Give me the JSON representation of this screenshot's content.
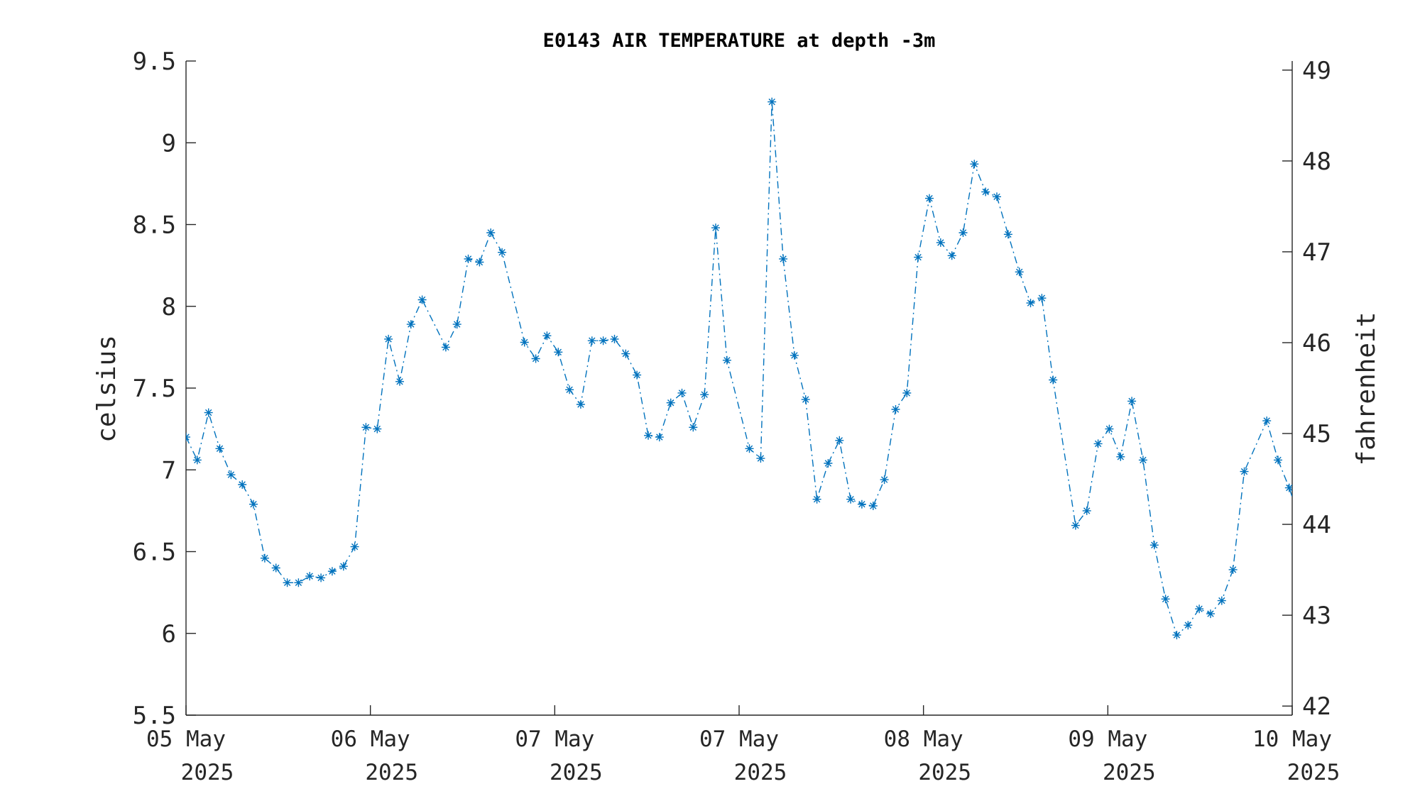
{
  "chart_data": {
    "type": "line",
    "title": "E0143 AIR TEMPERATURE at depth -3m",
    "ylabel": "celsius",
    "ylabel_right": "fahrenheit",
    "xlabel": "",
    "ylim": [
      5.5,
      9.5
    ],
    "ylim_right": [
      41.9,
      49.1
    ],
    "yticks": [
      5.5,
      6,
      6.5,
      7,
      7.5,
      8,
      8.5,
      9,
      9.5
    ],
    "ytick_labels": [
      "5.5",
      "6",
      "6.5",
      "7",
      "7.5",
      "8",
      "8.5",
      "9",
      "9.5"
    ],
    "yticks_right": [
      42,
      43,
      44,
      45,
      46,
      47,
      48,
      49
    ],
    "ytick_labels_right": [
      "42",
      "43",
      "44",
      "45",
      "46",
      "47",
      "48",
      "49"
    ],
    "xlim": [
      0,
      6
    ],
    "xticks": [
      {
        "pos": 0,
        "line1": "05 May",
        "line2": "2025"
      },
      {
        "pos": 1,
        "line1": "06 May",
        "line2": "2025"
      },
      {
        "pos": 2,
        "line1": "07 May",
        "line2": "2025"
      },
      {
        "pos": 3,
        "line1": "07 May",
        "line2": "2025"
      },
      {
        "pos": 4,
        "line1": "08 May",
        "line2": "2025"
      },
      {
        "pos": 5,
        "line1": "09 May",
        "line2": "2025"
      },
      {
        "pos": 6,
        "line1": "10 May",
        "line2": "2025"
      }
    ],
    "grid": false,
    "line_style": "dash-dot",
    "marker": "asterisk",
    "series": [
      {
        "color": "#0072bd",
        "x": [
          0.0,
          0.061,
          0.122,
          0.183,
          0.244,
          0.305,
          0.366,
          0.427,
          0.488,
          0.549,
          0.61,
          0.671,
          0.732,
          0.793,
          0.854,
          0.915,
          0.976,
          1.037,
          1.098,
          1.159,
          1.22,
          1.281,
          1.409,
          1.47,
          1.531,
          1.592,
          1.653,
          1.714,
          1.836,
          1.897,
          1.958,
          2.019,
          2.08,
          2.141,
          2.202,
          2.263,
          2.324,
          2.385,
          2.446,
          2.507,
          2.568,
          2.629,
          2.69,
          2.751,
          2.812,
          2.873,
          2.934,
          3.056,
          3.117,
          3.178,
          3.239,
          3.3,
          3.361,
          3.422,
          3.483,
          3.544,
          3.605,
          3.666,
          3.727,
          3.788,
          3.849,
          3.91,
          3.971,
          4.032,
          4.093,
          4.154,
          4.215,
          4.276,
          4.337,
          4.398,
          4.459,
          4.52,
          4.581,
          4.642,
          4.703,
          4.825,
          4.886,
          4.947,
          5.008,
          5.069,
          5.13,
          5.191,
          5.252,
          5.313,
          5.374,
          5.435,
          5.496,
          5.557,
          5.618,
          5.679,
          5.74,
          5.862,
          5.923,
          5.984,
          6.045
        ],
        "values": [
          7.2,
          7.06,
          7.35,
          7.13,
          6.97,
          6.91,
          6.79,
          6.46,
          6.4,
          6.31,
          6.31,
          6.35,
          6.34,
          6.38,
          6.41,
          6.53,
          7.26,
          7.25,
          7.8,
          7.54,
          7.89,
          8.04,
          7.75,
          7.89,
          8.29,
          8.27,
          8.45,
          8.33,
          7.78,
          7.68,
          7.82,
          7.72,
          7.49,
          7.4,
          7.79,
          7.79,
          7.8,
          7.71,
          7.58,
          7.21,
          7.2,
          7.41,
          7.47,
          7.26,
          7.46,
          8.48,
          7.67,
          7.13,
          7.07,
          9.25,
          8.29,
          7.7,
          7.43,
          6.82,
          7.04,
          7.18,
          6.82,
          6.79,
          6.78,
          6.94,
          7.37,
          7.47,
          8.3,
          8.66,
          8.39,
          8.31,
          8.45,
          8.87,
          8.7,
          8.67,
          8.44,
          8.21,
          8.02,
          8.05,
          7.55,
          6.66,
          6.75,
          7.16,
          7.25,
          7.08,
          7.42,
          7.06,
          6.54,
          6.21,
          5.99,
          6.05,
          6.15,
          6.12,
          6.2,
          6.39,
          6.99,
          7.3,
          7.06,
          6.89,
          6.68
        ]
      }
    ]
  }
}
